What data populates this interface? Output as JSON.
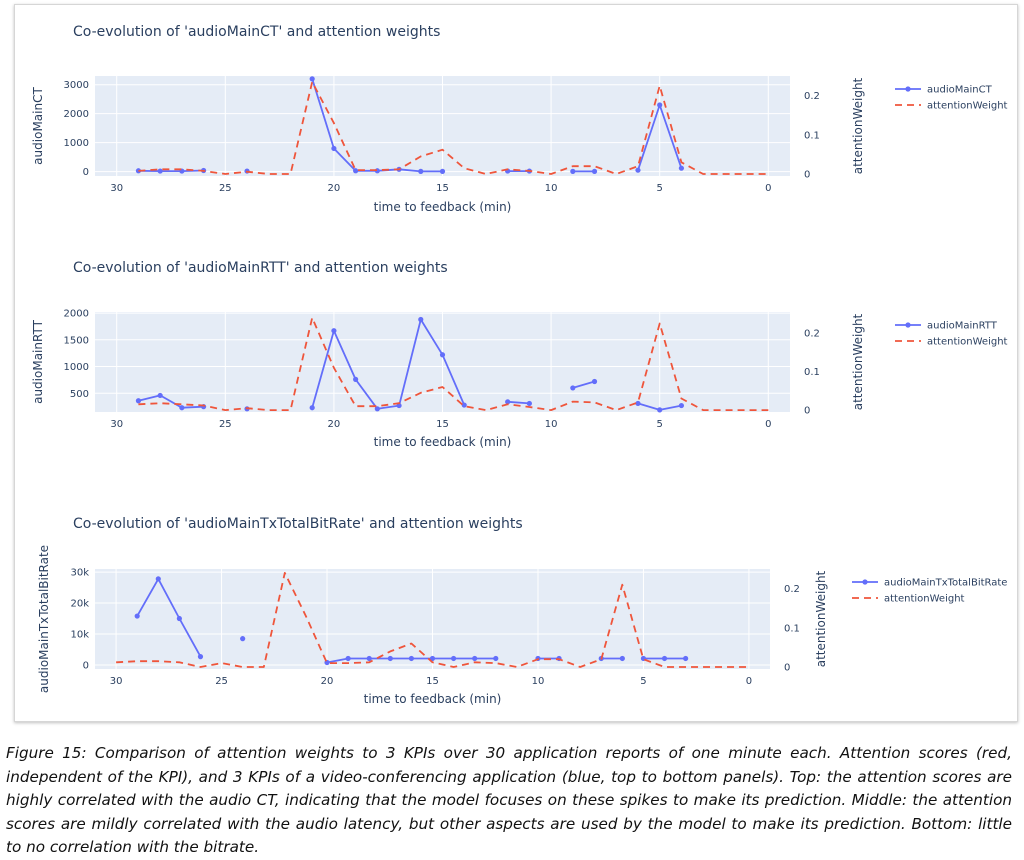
{
  "caption": "Figure 15: Comparison of attention weights to 3 KPIs over 30 application reports of one minute each. Attention scores (red, independent of the KPI), and 3 KPIs of a video-conferencing application (blue, top to bottom panels). Top: the attention scores are highly correlated with the audio CT, indicating that the model focuses on these spikes to make its prediction. Middle: the attention scores are mildly correlated with the audio latency, but other aspects are used by the model to make its prediction. Bottom: little to no correlation with the bitrate.",
  "colors": {
    "kpi": "#636efa",
    "attention": "#ef553b",
    "plot_bg": "#e5ecf6",
    "grid": "#ffffff",
    "text": "#2a3f5f"
  },
  "chart_data": [
    {
      "type": "line",
      "title": "Co-evolution of 'audioMainCT' and attention weights",
      "xlabel": "time to feedback (min)",
      "ylabel": "audioMainCT",
      "y2label": "attentionWeight",
      "xlim": [
        31,
        -1
      ],
      "ylim": [
        -150,
        3300
      ],
      "y2lim": [
        -0.005,
        0.25
      ],
      "x_ticks": [
        30,
        25,
        20,
        15,
        10,
        5,
        0
      ],
      "y_ticks": [
        0,
        1000,
        2000,
        3000
      ],
      "y_tick_labels": [
        "0",
        "1000",
        "2000",
        "3000"
      ],
      "y2_ticks": [
        0,
        0.1,
        0.2
      ],
      "y2_tick_labels": [
        "0",
        "0.1",
        "0.2"
      ],
      "legend": "top-right",
      "grid": true,
      "series": [
        {
          "name": "audioMainCT",
          "axis": "y",
          "style": "lines+markers",
          "x": [
            29,
            28,
            27,
            26,
            null,
            24,
            null,
            21,
            20,
            19,
            18,
            17,
            16,
            15,
            null,
            12,
            11,
            null,
            9,
            8,
            null,
            6,
            5,
            4
          ],
          "y": [
            30,
            20,
            20,
            40,
            null,
            20,
            null,
            3200,
            800,
            30,
            30,
            80,
            10,
            10,
            null,
            20,
            20,
            null,
            10,
            10,
            null,
            50,
            2300,
            120
          ]
        },
        {
          "name": "attentionWeight",
          "axis": "y2",
          "style": "dash",
          "x": [
            29,
            28,
            27,
            26,
            25,
            24,
            23,
            22,
            21,
            20,
            19,
            18,
            17,
            16,
            15,
            14,
            13,
            12,
            11,
            10,
            9,
            8,
            7,
            6,
            5,
            4,
            3,
            2,
            1,
            0
          ],
          "y": [
            0.008,
            0.012,
            0.012,
            0.008,
            0.0,
            0.006,
            0.0,
            0.0,
            0.235,
            0.13,
            0.01,
            0.01,
            0.012,
            0.045,
            0.062,
            0.015,
            0.0,
            0.012,
            0.008,
            0.0,
            0.02,
            0.02,
            0.0,
            0.02,
            0.225,
            0.03,
            0.0,
            0.0,
            0.0,
            0.0
          ]
        }
      ]
    },
    {
      "type": "line",
      "title": "Co-evolution of 'audioMainRTT' and attention weights",
      "xlabel": "time to feedback (min)",
      "ylabel": "audioMainRTT",
      "y2label": "attentionWeight",
      "xlim": [
        31,
        -1
      ],
      "ylim": [
        150,
        2020
      ],
      "y2lim": [
        -0.005,
        0.255
      ],
      "x_ticks": [
        30,
        25,
        20,
        15,
        10,
        5,
        0
      ],
      "y_ticks": [
        500,
        1000,
        1500,
        2000
      ],
      "y_tick_labels": [
        "500",
        "1000",
        "1500",
        "2000"
      ],
      "y2_ticks": [
        0,
        0.1,
        0.2
      ],
      "y2_tick_labels": [
        "0",
        "0.1",
        "0.2"
      ],
      "legend": "top-right",
      "grid": true,
      "series": [
        {
          "name": "audioMainRTT",
          "axis": "y",
          "style": "lines+markers",
          "x": [
            29,
            28,
            27,
            26,
            null,
            24,
            null,
            21,
            20,
            19,
            18,
            17,
            16,
            15,
            14,
            null,
            12,
            11,
            null,
            9,
            8,
            null,
            6,
            5,
            4
          ],
          "y": [
            360,
            460,
            230,
            250,
            null,
            210,
            null,
            230,
            1670,
            760,
            210,
            270,
            1880,
            1220,
            280,
            null,
            340,
            310,
            null,
            600,
            720,
            null,
            310,
            190,
            270
          ]
        },
        {
          "name": "attentionWeight",
          "axis": "y2",
          "style": "dash",
          "x": [
            29,
            28,
            27,
            26,
            25,
            24,
            23,
            22,
            21,
            20,
            19,
            18,
            17,
            16,
            15,
            14,
            13,
            12,
            11,
            10,
            9,
            8,
            7,
            6,
            5,
            4,
            3,
            2,
            1,
            0
          ],
          "y": [
            0.015,
            0.018,
            0.015,
            0.012,
            0.0,
            0.005,
            0.0,
            0.0,
            0.24,
            0.11,
            0.01,
            0.01,
            0.018,
            0.045,
            0.06,
            0.01,
            0.0,
            0.015,
            0.008,
            0.0,
            0.022,
            0.02,
            0.0,
            0.02,
            0.225,
            0.03,
            0.0,
            0.0,
            0.0,
            0.0
          ]
        }
      ]
    },
    {
      "type": "line",
      "title": "Co-evolution of 'audioMainTxTotalBitRate' and attention weights",
      "xlabel": "time to feedback (min)",
      "ylabel": "audioMainTxTotalBitRate",
      "y2label": "attentionWeight",
      "xlim": [
        31,
        -1
      ],
      "ylim": [
        -1300,
        31000
      ],
      "y2lim": [
        -0.005,
        0.25
      ],
      "x_ticks": [
        30,
        25,
        20,
        15,
        10,
        5,
        0
      ],
      "y_ticks": [
        0,
        10000,
        20000,
        30000
      ],
      "y_tick_labels": [
        "0",
        "10k",
        "20k",
        "30k"
      ],
      "y2_ticks": [
        0,
        0.1,
        0.2
      ],
      "y2_tick_labels": [
        "0",
        "0.1",
        "0.2"
      ],
      "legend": "top-right",
      "grid": true,
      "series": [
        {
          "name": "audioMainTxTotalBitRate",
          "axis": "y",
          "style": "lines+markers",
          "x": [
            29,
            28,
            27,
            26,
            null,
            24,
            null,
            20,
            19,
            18,
            17,
            16,
            15,
            14,
            13,
            12,
            null,
            10,
            9,
            null,
            7,
            6,
            null,
            5,
            4,
            3
          ],
          "y": [
            15800,
            27800,
            15000,
            2700,
            null,
            8500,
            null,
            800,
            2100,
            2100,
            2100,
            2100,
            2100,
            2100,
            2100,
            2100,
            null,
            2100,
            2100,
            null,
            2100,
            2100,
            null,
            2100,
            2100,
            2100
          ]
        },
        {
          "name": "attentionWeight",
          "axis": "y2",
          "style": "dash",
          "x": [
            30,
            29,
            28,
            27,
            26,
            25,
            24,
            23,
            22,
            21,
            20,
            19,
            18,
            17,
            16,
            15,
            14,
            13,
            12,
            11,
            10,
            9,
            8,
            7,
            6,
            5,
            4,
            3,
            2,
            1,
            0
          ],
          "y": [
            0.012,
            0.015,
            0.015,
            0.012,
            0.0,
            0.01,
            0.0,
            0.0,
            0.24,
            0.13,
            0.01,
            0.01,
            0.012,
            0.04,
            0.06,
            0.012,
            0.0,
            0.012,
            0.01,
            0.0,
            0.02,
            0.02,
            0.0,
            0.02,
            0.21,
            0.02,
            0.0,
            0.0,
            0.0,
            0.0,
            0.0
          ]
        }
      ]
    }
  ]
}
